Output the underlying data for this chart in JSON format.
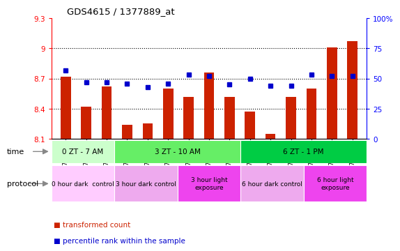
{
  "title": "GDS4615 / 1377889_at",
  "categories": [
    "GSM724207",
    "GSM724208",
    "GSM724209",
    "GSM724210",
    "GSM724211",
    "GSM724212",
    "GSM724213",
    "GSM724214",
    "GSM724215",
    "GSM724216",
    "GSM724217",
    "GSM724218",
    "GSM724219",
    "GSM724220",
    "GSM724221"
  ],
  "red_values": [
    8.72,
    8.42,
    8.62,
    8.24,
    8.25,
    8.6,
    8.52,
    8.76,
    8.52,
    8.37,
    8.15,
    8.52,
    8.6,
    9.01,
    9.07
  ],
  "blue_values": [
    57,
    47,
    47,
    46,
    43,
    46,
    53,
    52,
    45,
    50,
    44,
    44,
    53,
    52,
    52
  ],
  "ymin": 8.1,
  "ymax": 9.3,
  "y2min": 0,
  "y2max": 100,
  "yticks": [
    8.1,
    8.4,
    8.7,
    9.0,
    9.3
  ],
  "ytick_labels": [
    "8.1",
    "8.4",
    "8.7",
    "9",
    "9.3"
  ],
  "y2ticks": [
    0,
    25,
    50,
    75,
    100
  ],
  "y2tick_labels": [
    "0",
    "25",
    "50",
    "75",
    "100%"
  ],
  "bar_color": "#cc2200",
  "dot_color": "#0000cc",
  "plot_bg": "#ffffff",
  "time_groups": [
    {
      "label": "0 ZT - 7 AM",
      "start": 0,
      "end": 3,
      "color": "#ccffcc"
    },
    {
      "label": "3 ZT - 10 AM",
      "start": 3,
      "end": 9,
      "color": "#66ee66"
    },
    {
      "label": "6 ZT - 1 PM",
      "start": 9,
      "end": 15,
      "color": "#00cc44"
    }
  ],
  "protocol_groups": [
    {
      "label": "0 hour dark  control",
      "start": 0,
      "end": 3,
      "color": "#ffccff"
    },
    {
      "label": "3 hour dark control",
      "start": 3,
      "end": 6,
      "color": "#eeaaee"
    },
    {
      "label": "3 hour light\nexposure",
      "start": 6,
      "end": 9,
      "color": "#ee44ee"
    },
    {
      "label": "6 hour dark control",
      "start": 9,
      "end": 12,
      "color": "#eeaaee"
    },
    {
      "label": "6 hour light\nexposure",
      "start": 12,
      "end": 15,
      "color": "#ee44ee"
    }
  ],
  "time_label": "time",
  "protocol_label": "protocol",
  "legend": [
    {
      "label": "transformed count",
      "color": "#cc2200"
    },
    {
      "label": "percentile rank within the sample",
      "color": "#0000cc"
    }
  ]
}
